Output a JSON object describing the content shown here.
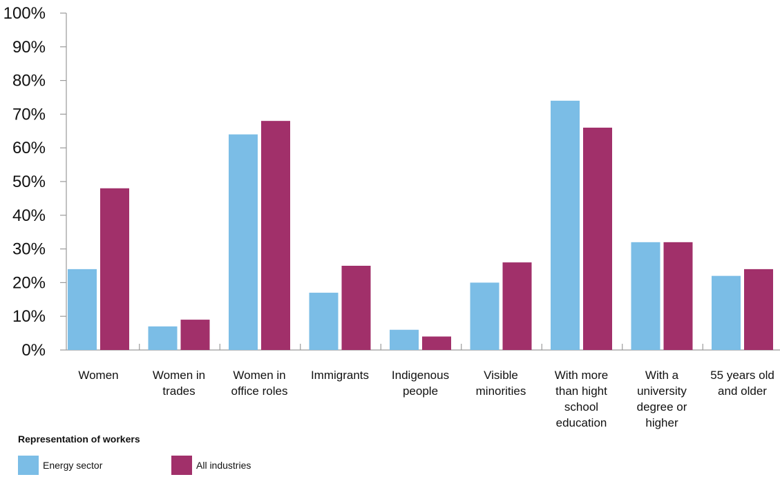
{
  "chart_data": {
    "type": "bar",
    "title": "",
    "xlabel": "",
    "ylabel": "",
    "ylim": [
      0,
      100
    ],
    "yticks": [
      "0%",
      "10%",
      "20%",
      "30%",
      "40%",
      "50%",
      "60%",
      "70%",
      "80%",
      "90%",
      "100%"
    ],
    "grid": false,
    "categories": [
      [
        "Women"
      ],
      [
        "Women in",
        "trades"
      ],
      [
        "Women in",
        "office roles"
      ],
      [
        "Immigrants"
      ],
      [
        "Indigenous",
        "people"
      ],
      [
        "Visible",
        "minorities"
      ],
      [
        "With more",
        "than hight",
        "school",
        "education"
      ],
      [
        "With a",
        "university",
        "degree or",
        "higher"
      ],
      [
        "55 years old",
        "and older"
      ]
    ],
    "series": [
      {
        "name": "Energy sector",
        "color": "#7bbde6",
        "values": [
          24,
          7,
          64,
          17,
          6,
          20,
          74,
          32,
          22
        ]
      },
      {
        "name": "All industries",
        "color": "#a1306a",
        "values": [
          48,
          9,
          68,
          25,
          4,
          26,
          66,
          32,
          24
        ]
      }
    ],
    "legend": {
      "title": "Representation of workers",
      "position": "bottom-left"
    }
  }
}
